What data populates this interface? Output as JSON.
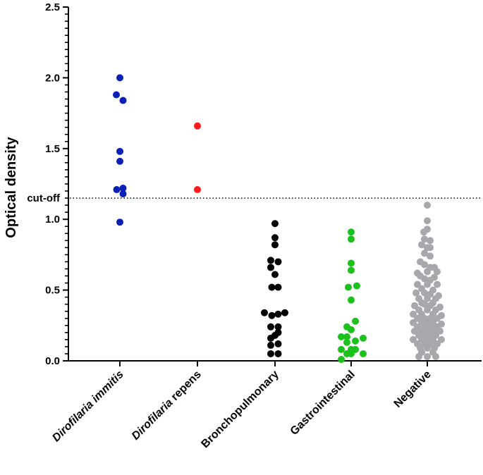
{
  "chart_data": {
    "type": "scatter",
    "ylabel": "Optical density",
    "ylim": [
      0,
      2.5
    ],
    "yticks": [
      "0.0",
      "0.5",
      "1.0",
      "1.5",
      "2.0",
      "2.5"
    ],
    "cutoff": {
      "value": 1.15,
      "label": "cut-off"
    },
    "categories": [
      {
        "name": "Dirofilaria immitis",
        "label_italic": "Dirofilaria",
        "label_rest": " immitis",
        "italic_all": true,
        "color": "#0a1fb4",
        "points": [
          [
            0,
            2.0
          ],
          [
            -0.5,
            1.88
          ],
          [
            0.45,
            1.84
          ],
          [
            0,
            1.48
          ],
          [
            0,
            1.41
          ],
          [
            -0.45,
            1.21
          ],
          [
            0.45,
            1.22
          ],
          [
            0.45,
            1.18
          ],
          [
            0,
            0.98
          ]
        ]
      },
      {
        "name": "Dirofilaria repens",
        "label_italic": "Dirofilaria",
        "label_rest": " repens",
        "italic_all": false,
        "color": "#ff1a1a",
        "points": [
          [
            0,
            1.66
          ],
          [
            0,
            1.21
          ]
        ]
      },
      {
        "name": "Bronchopulmonary",
        "color": "#000000",
        "points": [
          [
            0,
            0.97
          ],
          [
            0,
            0.87
          ],
          [
            0,
            0.82
          ],
          [
            -0.6,
            0.71
          ],
          [
            0.45,
            0.7
          ],
          [
            -0.6,
            0.66
          ],
          [
            0,
            0.61
          ],
          [
            -0.45,
            0.52
          ],
          [
            0.45,
            0.52
          ],
          [
            -1.5,
            0.34
          ],
          [
            -0.45,
            0.32
          ],
          [
            0.45,
            0.33
          ],
          [
            1.4,
            0.34
          ],
          [
            -0.6,
            0.24
          ],
          [
            0.45,
            0.24
          ],
          [
            0,
            0.18
          ],
          [
            -0.6,
            0.16
          ],
          [
            0.45,
            0.2
          ],
          [
            -0.6,
            0.11
          ],
          [
            0.45,
            0.12
          ],
          [
            -0.6,
            0.05
          ],
          [
            0.45,
            0.05
          ]
        ]
      },
      {
        "name": "Gastrointestinal",
        "color": "#1cc21c",
        "points": [
          [
            0,
            0.91
          ],
          [
            0,
            0.86
          ],
          [
            0,
            0.69
          ],
          [
            0,
            0.64
          ],
          [
            -0.4,
            0.52
          ],
          [
            0.8,
            0.53
          ],
          [
            0,
            0.43
          ],
          [
            0.6,
            0.28
          ],
          [
            -0.6,
            0.24
          ],
          [
            0,
            0.22
          ],
          [
            -1.4,
            0.17
          ],
          [
            -0.6,
            0.17
          ],
          [
            1.7,
            0.16
          ],
          [
            -0.6,
            0.13
          ],
          [
            0.6,
            0.14
          ],
          [
            -1.4,
            0.08
          ],
          [
            0,
            0.08
          ],
          [
            0.6,
            0.08
          ],
          [
            -0.6,
            0.05
          ],
          [
            1.7,
            0.05
          ],
          [
            0,
            0.05
          ],
          [
            -1.4,
            0.01
          ]
        ]
      },
      {
        "name": "Negative",
        "color": "#a7a8ab",
        "points": [
          [
            0,
            1.1
          ],
          [
            0,
            0.99
          ],
          [
            0,
            0.93
          ],
          [
            -0.5,
            0.91
          ],
          [
            -0.4,
            0.86
          ],
          [
            0.4,
            0.85
          ],
          [
            -0.8,
            0.82
          ],
          [
            0.4,
            0.8
          ],
          [
            0,
            0.8
          ],
          [
            -0.4,
            0.76
          ],
          [
            0.4,
            0.74
          ],
          [
            -1.0,
            0.7
          ],
          [
            -0.4,
            0.68
          ],
          [
            0.4,
            0.66
          ],
          [
            1.0,
            0.66
          ],
          [
            -1.4,
            0.62
          ],
          [
            0,
            0.63
          ],
          [
            1.4,
            0.63
          ],
          [
            -1.0,
            0.6
          ],
          [
            1.0,
            0.59
          ],
          [
            -0.4,
            0.58
          ],
          [
            0.4,
            0.57
          ],
          [
            -1.4,
            0.54
          ],
          [
            0,
            0.54
          ],
          [
            1.4,
            0.54
          ],
          [
            -0.8,
            0.51
          ],
          [
            0.8,
            0.5
          ],
          [
            -1.6,
            0.48
          ],
          [
            -0.4,
            0.48
          ],
          [
            0.4,
            0.47
          ],
          [
            1.6,
            0.46
          ],
          [
            -1.2,
            0.44
          ],
          [
            0,
            0.44
          ],
          [
            1.2,
            0.44
          ],
          [
            -0.8,
            0.41
          ],
          [
            0.8,
            0.41
          ],
          [
            -1.8,
            0.39
          ],
          [
            -0.4,
            0.4
          ],
          [
            0.4,
            0.39
          ],
          [
            1.8,
            0.38
          ],
          [
            -1.2,
            0.36
          ],
          [
            0,
            0.36
          ],
          [
            1.2,
            0.36
          ],
          [
            -2.0,
            0.33
          ],
          [
            -0.8,
            0.33
          ],
          [
            0.8,
            0.33
          ],
          [
            2.0,
            0.32
          ],
          [
            -1.4,
            0.3
          ],
          [
            -0.4,
            0.3
          ],
          [
            0.4,
            0.3
          ],
          [
            1.4,
            0.3
          ],
          [
            -2.0,
            0.27
          ],
          [
            -0.8,
            0.27
          ],
          [
            0,
            0.27
          ],
          [
            0.8,
            0.27
          ],
          [
            2.0,
            0.26
          ],
          [
            -1.4,
            0.24
          ],
          [
            -0.4,
            0.24
          ],
          [
            0.4,
            0.24
          ],
          [
            1.4,
            0.24
          ],
          [
            -1.8,
            0.21
          ],
          [
            -0.8,
            0.21
          ],
          [
            0,
            0.21
          ],
          [
            0.8,
            0.21
          ],
          [
            1.8,
            0.21
          ],
          [
            -1.2,
            0.18
          ],
          [
            -0.4,
            0.18
          ],
          [
            0.4,
            0.18
          ],
          [
            1.2,
            0.18
          ],
          [
            -2.0,
            0.15
          ],
          [
            -0.8,
            0.15
          ],
          [
            0,
            0.15
          ],
          [
            0.8,
            0.15
          ],
          [
            2.0,
            0.15
          ],
          [
            -1.4,
            0.12
          ],
          [
            -0.4,
            0.12
          ],
          [
            0.4,
            0.12
          ],
          [
            1.4,
            0.12
          ],
          [
            -1.0,
            0.09
          ],
          [
            0,
            0.09
          ],
          [
            1.0,
            0.09
          ],
          [
            -0.8,
            0.06
          ],
          [
            0.8,
            0.06
          ],
          [
            -1.2,
            0.03
          ],
          [
            0,
            0.03
          ],
          [
            1.2,
            0.03
          ]
        ]
      }
    ]
  }
}
